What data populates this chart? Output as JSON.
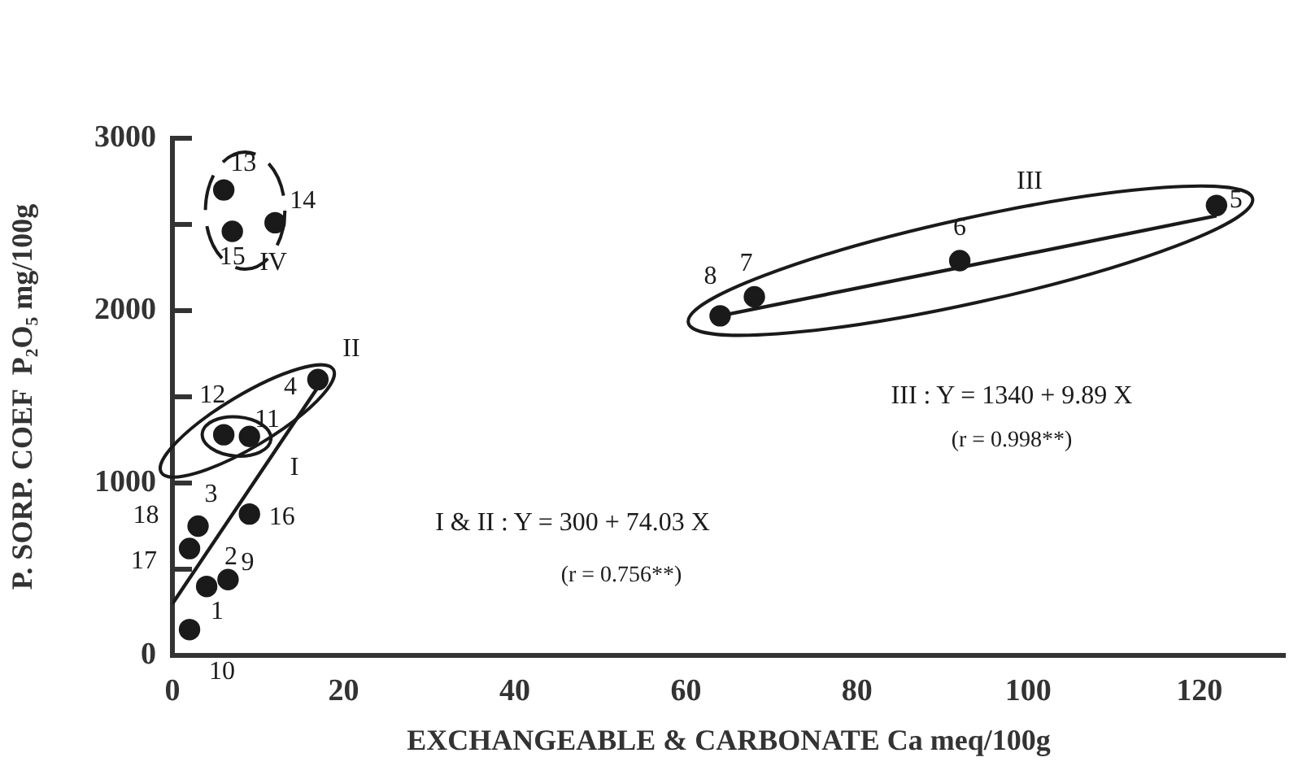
{
  "chart_data": {
    "type": "scatter",
    "xlabel": "EXCHANGEABLE & CARBONATE Ca meq/100g",
    "ylabel": "P. SORP. COEF  P₂O₅ mg/100g",
    "xlim": [
      0,
      130
    ],
    "ylim": [
      0,
      3000
    ],
    "xticks": [
      0,
      20,
      40,
      60,
      80,
      100,
      120
    ],
    "yticks": [
      0,
      {
        "value": 500,
        "label": null
      },
      1000,
      {
        "value": 1500,
        "label": null
      },
      2000,
      {
        "value": 2500,
        "label": null
      },
      3000
    ],
    "grid": false,
    "series": [
      {
        "type": "scatter",
        "color": "#1a1a1a",
        "marker": "circle",
        "x": [
          6,
          12,
          7,
          17,
          6,
          9,
          9,
          3,
          2,
          4,
          6.5,
          2,
          122,
          92,
          68,
          64
        ],
        "values": [
          2700,
          2510,
          2460,
          1600,
          1280,
          1270,
          820,
          750,
          620,
          400,
          440,
          150,
          2610,
          2290,
          2080,
          1970
        ]
      },
      {
        "type": "line",
        "color": "#1a1a1a",
        "marker": "none",
        "line_style": "solid",
        "x": [
          0,
          18
        ],
        "values": [
          300,
          1630
        ]
      },
      {
        "type": "line",
        "color": "#1a1a1a",
        "marker": "none",
        "line_style": "solid",
        "x": [
          64,
          122
        ],
        "values": [
          1970,
          2550
        ]
      }
    ],
    "annotations": [
      {
        "text": "13",
        "x": 6,
        "y": 2700
      },
      {
        "text": "14",
        "x": 12,
        "y": 2510
      },
      {
        "text": "15",
        "x": 7,
        "y": 2460
      },
      {
        "text": "4",
        "x": 17,
        "y": 1600
      },
      {
        "text": "12",
        "x": 6,
        "y": 1280
      },
      {
        "text": "11",
        "x": 9,
        "y": 1270
      },
      {
        "text": "16",
        "x": 9,
        "y": 820
      },
      {
        "text": "3",
        "x": 3,
        "y": 750
      },
      {
        "text": "18",
        "x": 3,
        "y": 750
      },
      {
        "text": "17",
        "x": 2,
        "y": 620
      },
      {
        "text": "2",
        "x": 4,
        "y": 400
      },
      {
        "text": "9",
        "x": 6.5,
        "y": 440
      },
      {
        "text": "1",
        "x": 2,
        "y": 150
      },
      {
        "text": "10",
        "x": 2,
        "y": 150
      },
      {
        "text": "5",
        "x": 122,
        "y": 2610
      },
      {
        "text": "6",
        "x": 92,
        "y": 2290
      },
      {
        "text": "7",
        "x": 68,
        "y": 2080
      },
      {
        "text": "8",
        "x": 64,
        "y": 1970
      },
      "IV",
      "I",
      "II",
      "III",
      "I & II : Y = 300 + 74.03 X",
      "(r = 0.756**)",
      "III : Y = 1340 + 9.89 X",
      "(r = 0.998**)"
    ]
  }
}
